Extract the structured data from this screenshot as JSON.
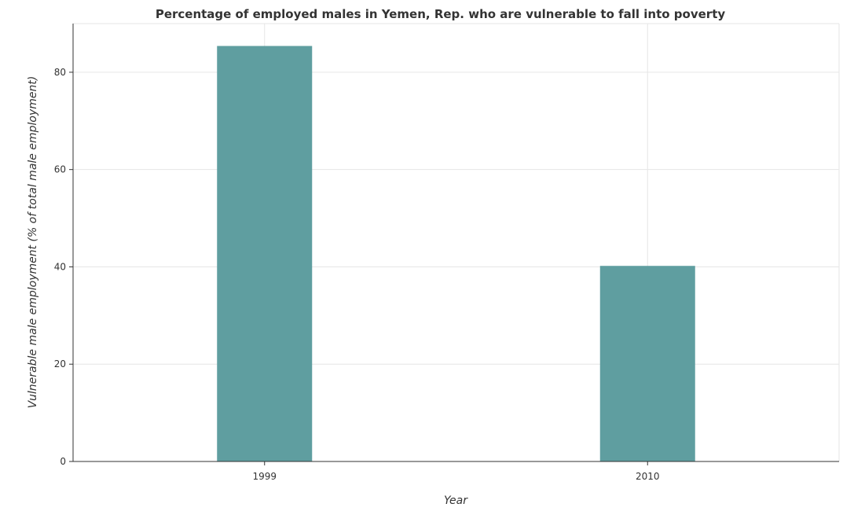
{
  "chart_data": {
    "type": "bar",
    "title": "Percentage of employed males in Yemen, Rep. who are vulnerable to fall into poverty",
    "xlabel": "Year",
    "ylabel": "Vulnerable male employment (% of total male employment)",
    "categories": [
      "1999",
      "2010"
    ],
    "values": [
      85.4,
      40.2
    ],
    "ylim": [
      0,
      90
    ],
    "yticks": [
      0,
      20,
      40,
      60,
      80
    ],
    "grid": true,
    "bar_color": "#5f9ea0"
  }
}
